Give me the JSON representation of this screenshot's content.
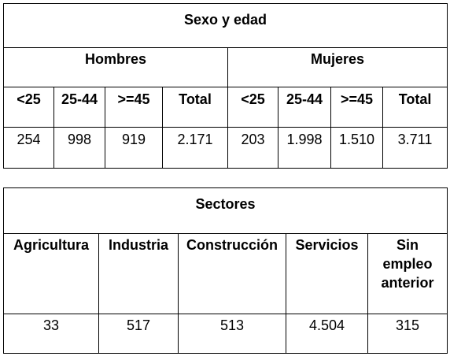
{
  "table1": {
    "title": "Sexo y edad",
    "groups": [
      "Hombres",
      "Mujeres"
    ],
    "headers": [
      "<25",
      "25-44",
      ">=45",
      "Total",
      "<25",
      "25-44",
      ">=45",
      "Total"
    ],
    "values": [
      "254",
      "998",
      "919",
      "2.171",
      "203",
      "1.998",
      "1.510",
      "3.711"
    ]
  },
  "table2": {
    "title": "Sectores",
    "headers": [
      "Agricultura",
      "Industria",
      "Construcción",
      "Servicios",
      "Sin\nempleo\nanterior"
    ],
    "values": [
      "33",
      "517",
      "513",
      "4.504",
      "315"
    ]
  }
}
